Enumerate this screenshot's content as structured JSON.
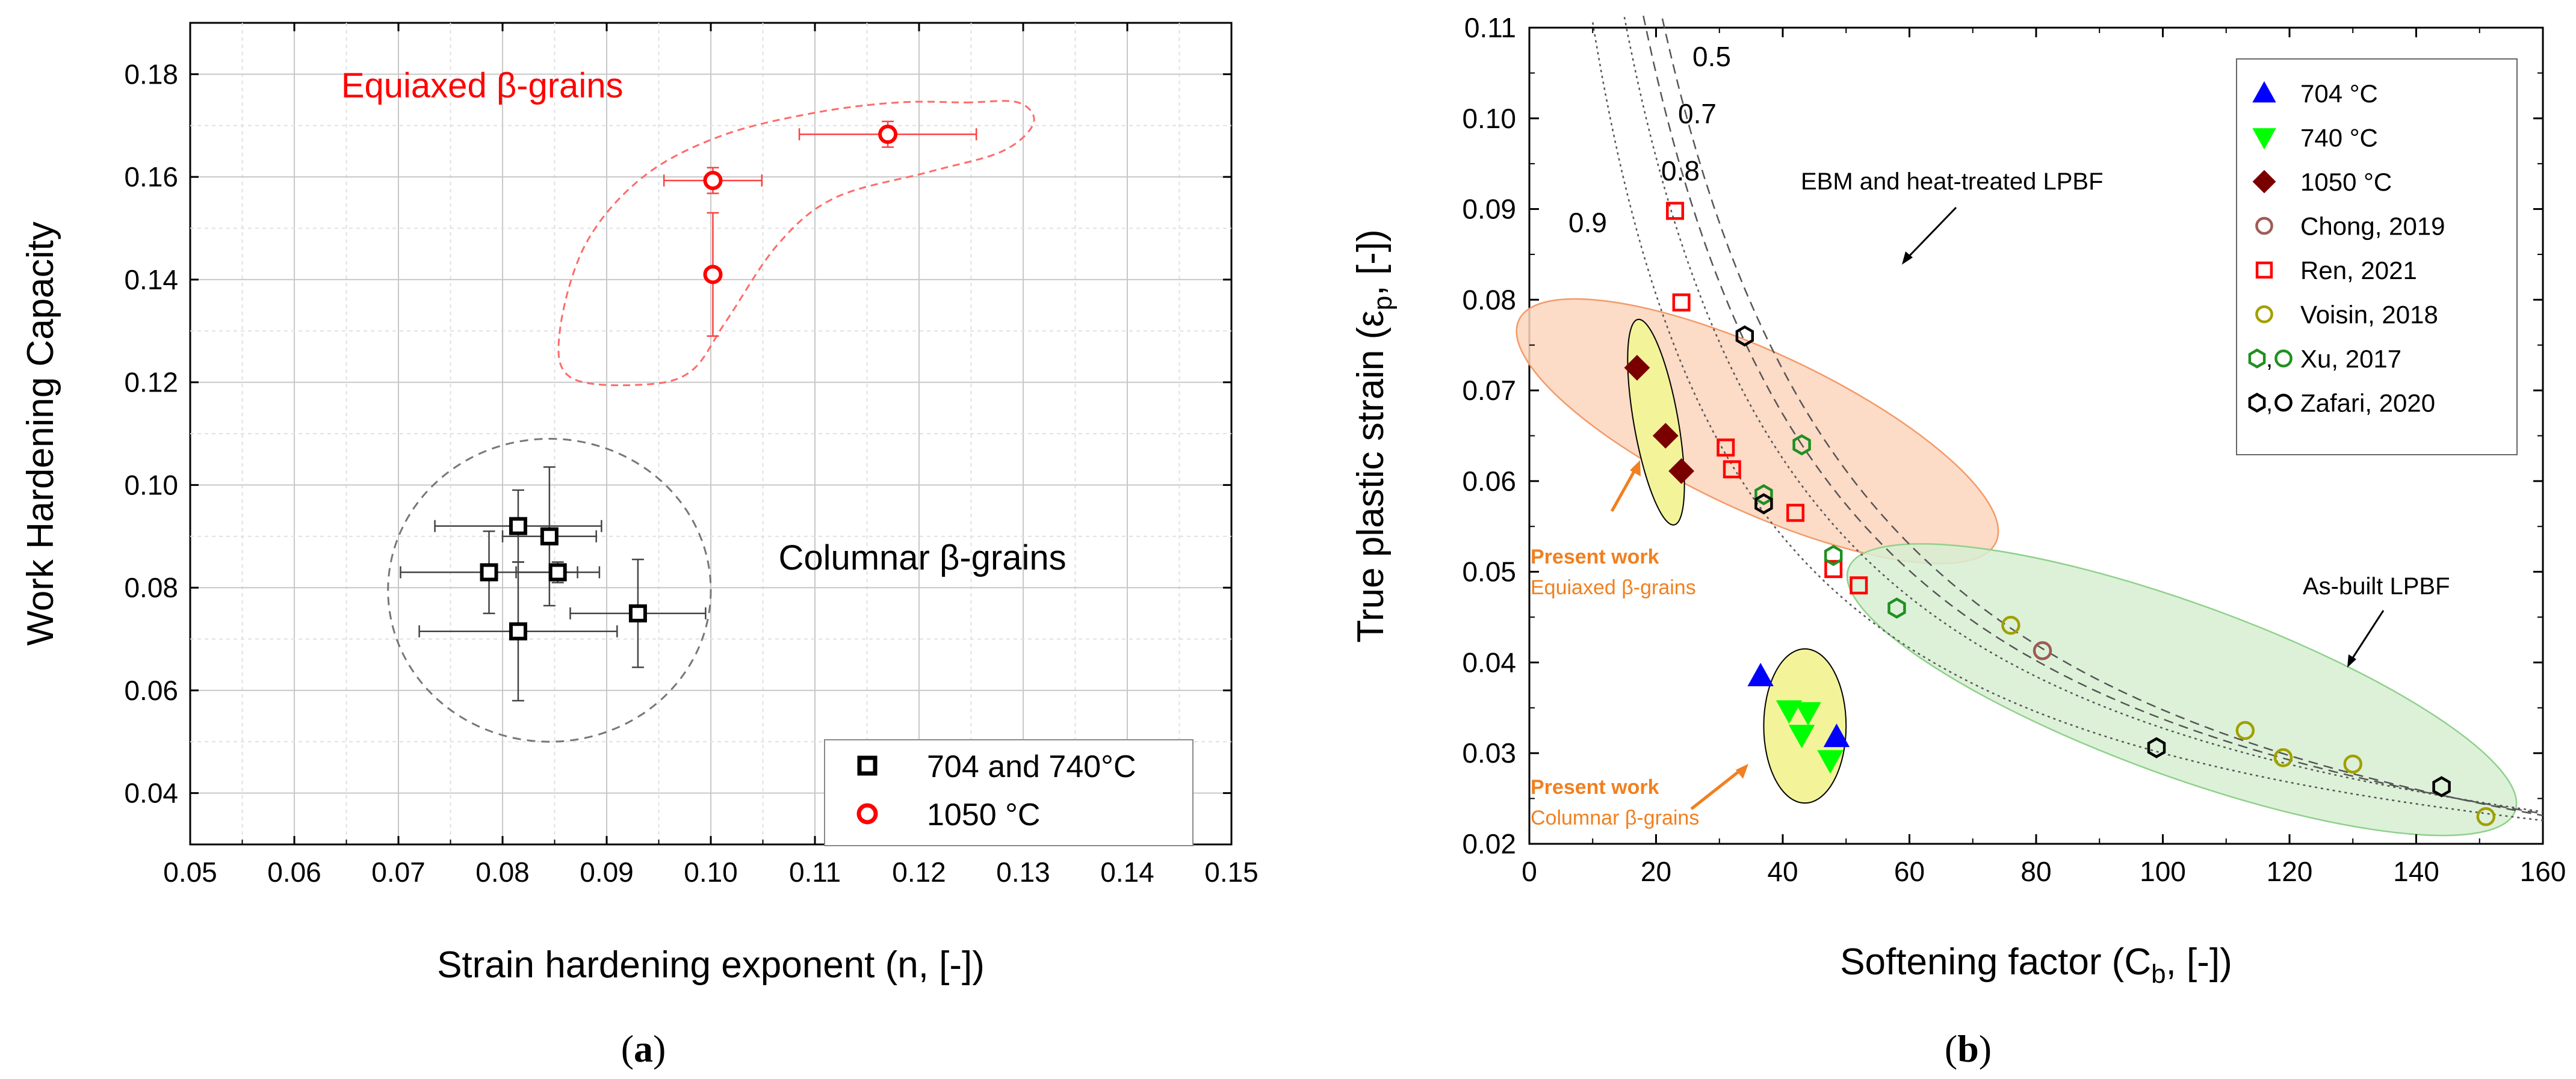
{
  "panel_a": {
    "caption": "a",
    "chart_data": {
      "type": "scatter",
      "xlabel": "Strain hardening exponent (n, [-])",
      "ylabel": "Work Hardening Capacity",
      "xlim": [
        0.05,
        0.15
      ],
      "ylim": [
        0.03,
        0.19
      ],
      "xticks": [
        0.05,
        0.06,
        0.07,
        0.08,
        0.09,
        0.1,
        0.11,
        0.12,
        0.13,
        0.14,
        0.15
      ],
      "xtick_labels": [
        "0.05",
        "0.06",
        "0.07",
        "0.08",
        "0.09",
        "0.10",
        "0.11",
        "0.12",
        "0.13",
        "0.14",
        "0.15"
      ],
      "yticks": [
        0.04,
        0.06,
        0.08,
        0.1,
        0.12,
        0.14,
        0.16,
        0.18
      ],
      "ytick_labels": [
        "0.04",
        "0.06",
        "0.08",
        "0.10",
        "0.12",
        "0.14",
        "0.16",
        "0.18"
      ],
      "grid": true,
      "legend_position": "bottom-right",
      "series": [
        {
          "name": "704 and 740°C",
          "color": "#000000",
          "marker": "square",
          "points": [
            {
              "x": 0.0815,
              "y": 0.092,
              "xerr": 0.008,
              "yerr": 0.007
            },
            {
              "x": 0.0845,
              "y": 0.09,
              "xerr": 0.0045,
              "yerr": 0.0135
            },
            {
              "x": 0.0787,
              "y": 0.083,
              "xerr": 0.0085,
              "yerr": 0.008
            },
            {
              "x": 0.0853,
              "y": 0.083,
              "xerr": 0.004,
              "yerr": 0.002
            },
            {
              "x": 0.0815,
              "y": 0.0715,
              "xerr": 0.0095,
              "yerr": 0.0135
            },
            {
              "x": 0.093,
              "y": 0.075,
              "xerr": 0.0065,
              "yerr": 0.0105
            }
          ]
        },
        {
          "name": "1050 °C",
          "color": "#ff0000",
          "marker": "circle",
          "points": [
            {
              "x": 0.117,
              "y": 0.1683,
              "xerr": 0.0085,
              "yerr": 0.0025
            },
            {
              "x": 0.1002,
              "y": 0.1593,
              "xerr": 0.0047,
              "yerr": 0.0025
            },
            {
              "x": 0.1002,
              "y": 0.141,
              "xerr": 0.0007,
              "yerr": 0.012
            }
          ]
        }
      ],
      "annotations": [
        {
          "text": "Equiaxed β-grains",
          "color": "#ff0000",
          "x": 0.0645,
          "y": 0.1755
        },
        {
          "text": "Columnar β-grains",
          "color": "#000000",
          "x": 0.1065,
          "y": 0.0835
        }
      ],
      "regions": [
        {
          "label": "columnar",
          "shape": "circle",
          "cx": 0.0845,
          "cy": 0.0795,
          "rx": 0.0155,
          "ry": 0.0295
        },
        {
          "label": "equiaxed",
          "shape": "freeform",
          "points": [
            [
              0.1245,
              0.1745
            ],
            [
              0.1295,
              0.1745
            ],
            [
              0.131,
              0.1705
            ],
            [
              0.128,
              0.165
            ],
            [
              0.121,
              0.161
            ],
            [
              0.112,
              0.156
            ],
            [
              0.1065,
              0.147
            ],
            [
              0.1015,
              0.132
            ],
            [
              0.098,
              0.122
            ],
            [
              0.093,
              0.1195
            ],
            [
              0.0865,
              0.121
            ],
            [
              0.0855,
              0.13
            ],
            [
              0.088,
              0.147
            ],
            [
              0.0935,
              0.16
            ],
            [
              0.101,
              0.168
            ],
            [
              0.11,
              0.1725
            ],
            [
              0.118,
              0.1745
            ]
          ]
        }
      ]
    }
  },
  "panel_b": {
    "caption": "b",
    "chart_data": {
      "type": "scatter",
      "xlabel_main": "Softening factor (C",
      "xlabel_sub": "b",
      "xlabel_end": ", [-])",
      "ylabel_main": "True plastic strain (ε",
      "ylabel_sub": "p",
      "ylabel_end": ", [-])",
      "xlim": [
        0,
        160
      ],
      "ylim": [
        0.02,
        0.11
      ],
      "xticks": [
        0,
        20,
        40,
        60,
        80,
        100,
        120,
        140,
        160
      ],
      "xtick_labels": [
        "0",
        "20",
        "40",
        "60",
        "80",
        "100",
        "120",
        "140",
        "160"
      ],
      "yticks": [
        0.02,
        0.03,
        0.04,
        0.05,
        0.06,
        0.07,
        0.08,
        0.09,
        0.1,
        0.11
      ],
      "ytick_labels": [
        "0.02",
        "0.03",
        "0.04",
        "0.05",
        "0.06",
        "0.07",
        "0.08",
        "0.09",
        "0.10",
        "0.11"
      ],
      "grid": false,
      "legend_position": "top-right",
      "curves": [
        {
          "label": "0.5",
          "k": 3.85,
          "style": "dashed"
        },
        {
          "label": "0.7",
          "k": 3.45,
          "style": "dashed"
        },
        {
          "label": "0.8",
          "k": 3.05,
          "style": "dotted"
        },
        {
          "label": "0.9",
          "k": 2.45,
          "style": "dotted"
        }
      ],
      "series": [
        {
          "name": "704 °C",
          "color": "#0000ff",
          "marker": "triangle-up",
          "filled": true,
          "points": [
            [
              36.5,
              0.0385
            ],
            [
              48.5,
              0.0318
            ]
          ]
        },
        {
          "name": "740 °C",
          "color": "#00ff00",
          "marker": "triangle-down",
          "filled": true,
          "points": [
            [
              41,
              0.0347
            ],
            [
              44,
              0.0345
            ],
            [
              43,
              0.032
            ],
            [
              47.5,
              0.0292
            ]
          ]
        },
        {
          "name": "1050 °C",
          "color": "#7a0000",
          "marker": "diamond",
          "filled": true,
          "points": [
            [
              17,
              0.0725
            ],
            [
              21.5,
              0.065
            ],
            [
              24,
              0.0611
            ]
          ]
        },
        {
          "name": "Chong, 2019",
          "color": "#9e5b55",
          "marker": "circle",
          "filled": false,
          "points": [
            [
              81,
              0.0413
            ]
          ]
        },
        {
          "name": "Ren, 2021",
          "color": "#ff0000",
          "marker": "square",
          "filled": false,
          "points": [
            [
              23,
              0.0898
            ],
            [
              24,
              0.0797
            ],
            [
              31,
              0.0637
            ],
            [
              32,
              0.0613
            ],
            [
              42,
              0.0565
            ],
            [
              48,
              0.0503
            ],
            [
              52,
              0.0485
            ]
          ]
        },
        {
          "name": "Voisin, 2018",
          "color": "#a0a000",
          "marker": "circle",
          "filled": false,
          "points": [
            [
              76,
              0.0441
            ],
            [
              113,
              0.0325
            ],
            [
              119,
              0.0295
            ],
            [
              130,
              0.0288
            ],
            [
              151,
              0.023
            ]
          ]
        },
        {
          "name": "Xu, 2017",
          "color": "#209020",
          "marker": "hexagon",
          "filled": false,
          "points": [
            [
              43,
              0.064
            ],
            [
              37,
              0.0585
            ],
            [
              48,
              0.0518
            ],
            [
              58,
              0.046
            ]
          ]
        },
        {
          "name": "Zafari, 2020",
          "color": "#000000",
          "marker": "hexagon",
          "filled": false,
          "points": [
            [
              34,
              0.076
            ],
            [
              37,
              0.0575
            ],
            [
              99,
              0.0306
            ],
            [
              144,
              0.0263
            ]
          ]
        }
      ],
      "regions": [
        {
          "label": "EBM and heat-treated LPBF",
          "fill": "#fbd5bd",
          "stroke": "#f39a68",
          "cx": 36,
          "cy": 0.0655,
          "rx": 12.5,
          "ry": 0.029,
          "angle": -65
        },
        {
          "label": "As-built LPBF",
          "fill": "#d7efd2",
          "stroke": "#8fd18a",
          "cx": 103,
          "cy": 0.037,
          "rx": 56,
          "ry": 0.0095,
          "angle": 20
        },
        {
          "label": "equiaxed",
          "fill": "#f3f39a",
          "stroke": "#000000",
          "cx": 20,
          "cy": 0.0665,
          "rx": 3.5,
          "ry": 0.0115,
          "angle": -10
        },
        {
          "label": "columnar",
          "fill": "#f3f39a",
          "stroke": "#000000",
          "cx": 43.5,
          "cy": 0.033,
          "rx": 6.5,
          "ry": 0.0085,
          "angle": 0
        }
      ],
      "annotations": [
        {
          "text": "EBM and heat-treated LPBF",
          "color": "#000000"
        },
        {
          "text": "As-built LPBF",
          "color": "#000000"
        },
        {
          "text": "Present work",
          "color": "#f08020",
          "bold": true,
          "id": "pw1"
        },
        {
          "text": "Equiaxed β-grains",
          "color": "#f08020",
          "id": "pw1b"
        },
        {
          "text": "Present work",
          "color": "#f08020",
          "bold": true,
          "id": "pw2"
        },
        {
          "text": "Columnar β-grains",
          "color": "#f08020",
          "id": "pw2b"
        }
      ]
    }
  }
}
